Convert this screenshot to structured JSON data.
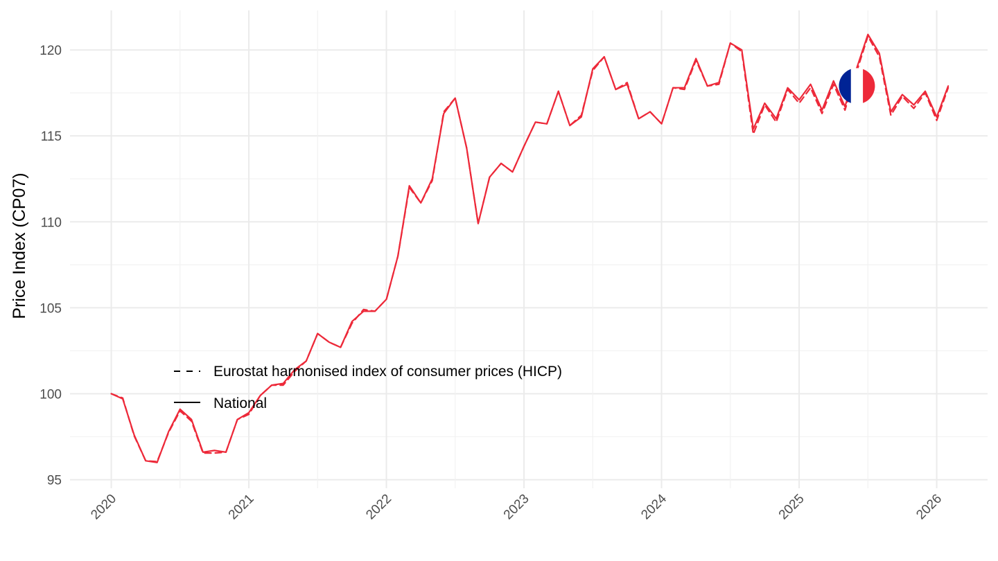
{
  "chart_data": {
    "type": "line",
    "title": "",
    "xlabel": "",
    "ylabel": "Price Index (CP07)",
    "ylim": [
      94.5,
      122.3
    ],
    "xlim": [
      2019.7,
      2026.37
    ],
    "y_ticks": [
      95,
      100,
      105,
      110,
      115,
      120
    ],
    "y_tick_labels": [
      "95",
      "100",
      "105",
      "110",
      "115",
      "120"
    ],
    "x_ticks": [
      2020,
      2021,
      2022,
      2023,
      2024,
      2025,
      2026
    ],
    "x_tick_labels": [
      "2020",
      "2021",
      "2022",
      "2023",
      "2024",
      "2025",
      "2026"
    ],
    "grid": true,
    "legend_position": "bottom-left inside",
    "flag_marker": {
      "country": "France",
      "colors": [
        "#002395",
        "#ffffff",
        "#ed2939"
      ],
      "x": 2025.42,
      "y": 117.9
    },
    "start": "2020-01",
    "frequency": "monthly",
    "line_color": "#ed2939",
    "series": [
      {
        "name": "Eurostat harmonised index of consumer prices (HICP)",
        "style": "dashed",
        "values": [
          100.0,
          99.75,
          97.55,
          96.1,
          96.05,
          97.75,
          99.0,
          98.4,
          96.55,
          96.55,
          96.6,
          98.5,
          98.8,
          99.9,
          100.5,
          100.5,
          101.3,
          101.9,
          103.5,
          103.0,
          102.7,
          104.1,
          104.9,
          104.8,
          105.5,
          108.0,
          112.0,
          111.1,
          112.4,
          116.4,
          117.2,
          114.3,
          109.9,
          112.6,
          113.4,
          112.9,
          114.4,
          115.8,
          115.7,
          117.6,
          115.6,
          116.2,
          118.8,
          119.6,
          117.7,
          118.1,
          116.0,
          116.4,
          115.7,
          117.8,
          117.7,
          119.4,
          117.9,
          118.0,
          120.4,
          119.9,
          115.1,
          116.8,
          115.8,
          117.7,
          116.9,
          117.8,
          116.3,
          118.0,
          116.5,
          118.7,
          120.8,
          119.6,
          116.2,
          117.3,
          116.6,
          117.5,
          115.9,
          117.8
        ]
      },
      {
        "name": "National",
        "style": "solid",
        "values": [
          100.0,
          99.7,
          97.6,
          96.1,
          96.0,
          97.8,
          99.1,
          98.5,
          96.6,
          96.7,
          96.6,
          98.5,
          98.9,
          99.9,
          100.5,
          100.6,
          101.4,
          101.9,
          103.5,
          103.0,
          102.7,
          104.2,
          104.8,
          104.8,
          105.5,
          108.0,
          112.1,
          111.1,
          112.5,
          116.3,
          117.2,
          114.3,
          109.9,
          112.6,
          113.4,
          112.9,
          114.4,
          115.8,
          115.7,
          117.6,
          115.6,
          116.1,
          118.9,
          119.6,
          117.7,
          118.0,
          116.0,
          116.4,
          115.7,
          117.8,
          117.8,
          119.5,
          117.9,
          118.1,
          120.4,
          120.0,
          115.4,
          116.9,
          116.0,
          117.8,
          117.1,
          118.0,
          116.5,
          118.2,
          116.7,
          118.9,
          120.9,
          119.8,
          116.4,
          117.4,
          116.8,
          117.6,
          116.1,
          117.9
        ]
      }
    ]
  }
}
